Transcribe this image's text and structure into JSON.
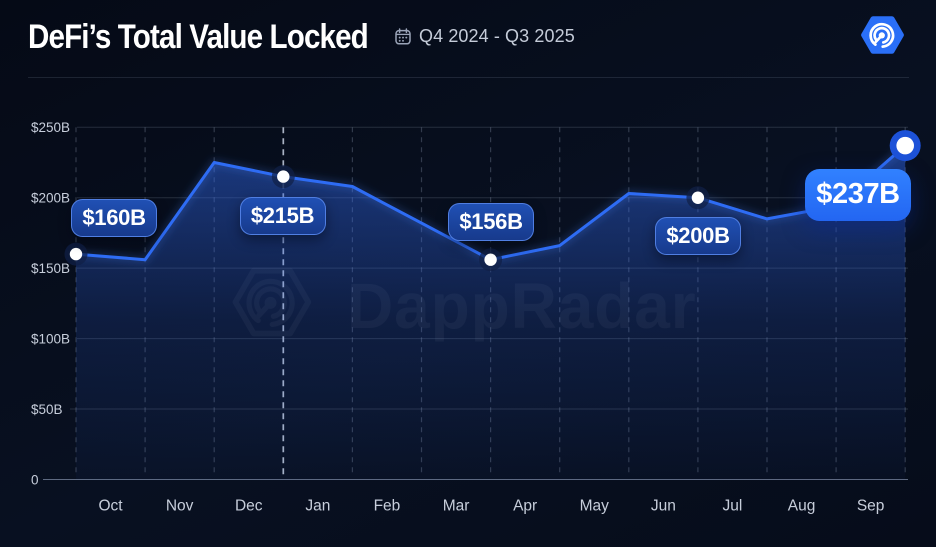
{
  "header": {
    "title": "DeFi’s Total Value Locked",
    "period": "Q4 2024 - Q3 2025"
  },
  "watermark": {
    "text": "DappRadar"
  },
  "colors": {
    "background": "#070c1b",
    "line": "#2e6cf4",
    "area_top": "rgba(50,108,242,0.50)",
    "area_bottom": "rgba(50,108,242,0.04)",
    "grid_horizontal": "rgba(148,163,184,0.22)",
    "grid_vertical_dashed": "rgba(148,163,184,0.30)",
    "grid_vertical_selected": "rgba(210,220,238,0.8)",
    "axis_line": "rgba(165,180,210,0.55)",
    "tick_label": "#c7cedb",
    "badge_fill": "#1b429f",
    "badge_border": "#4a7de0",
    "badge_big_fill": "#2b78fe",
    "logo_blue": "#2a6ff7",
    "dot_white": "#ffffff",
    "dot_halo": "rgba(16,32,70,0.72)",
    "dot_halo_final": "#1d52d8"
  },
  "chart_data": {
    "type": "area",
    "title": "DeFi's Total Value Locked",
    "period": "Q4 2024 - Q3 2025",
    "x_labels": [
      "Oct",
      "Nov",
      "Dec",
      "Jan",
      "Feb",
      "Mar",
      "Apr",
      "May",
      "Jun",
      "Jul",
      "Aug",
      "Sep"
    ],
    "x_label_note": "12 month labels sit between 13 month-boundary gridlines; values are month-boundary points Oct 2024 - end of Sep 2025",
    "values": [
      160,
      156,
      225,
      215,
      208,
      182,
      156,
      166,
      203,
      200,
      185,
      194,
      237
    ],
    "y_ticks": [
      "$250B",
      "$200B",
      "$150B",
      "$100B",
      "$50B",
      "0"
    ],
    "y_tick_values": [
      250,
      200,
      150,
      100,
      50,
      0
    ],
    "ylim": [
      0,
      250
    ],
    "grid": {
      "horizontal": "solid",
      "vertical": "dashed"
    },
    "legend": "none",
    "highlights": [
      {
        "index": 0,
        "label": "$160B",
        "value": 160,
        "month": "Oct 2024"
      },
      {
        "index": 3,
        "label": "$215B",
        "value": 215,
        "month": "Dec 2024",
        "selected": true
      },
      {
        "index": 6,
        "label": "$156B",
        "value": 156,
        "month": "Mar 2025"
      },
      {
        "index": 9,
        "label": "$200B",
        "value": 200,
        "month": "Jun 2025"
      },
      {
        "index": 12,
        "label": "$237B",
        "value": 237,
        "month": "Sep 2025",
        "emphasis": true
      }
    ]
  }
}
